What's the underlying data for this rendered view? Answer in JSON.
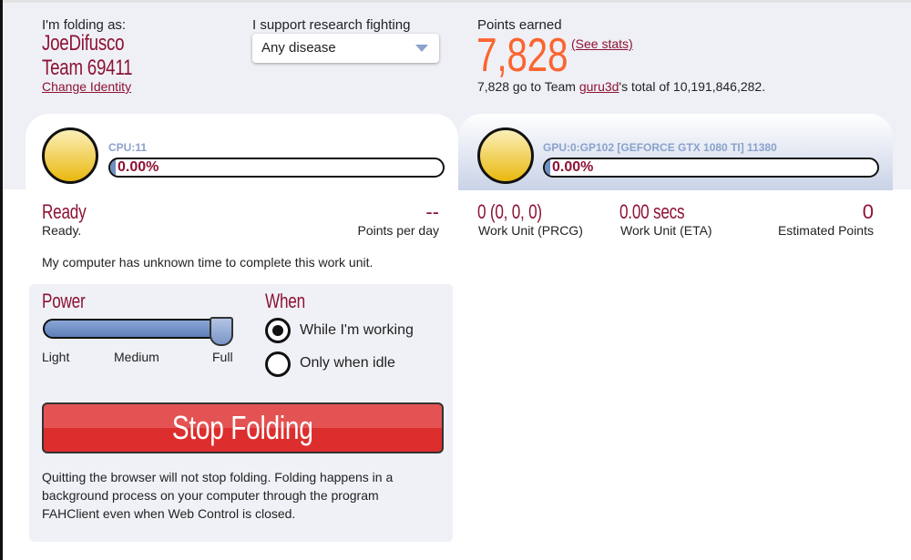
{
  "identity": {
    "label": "I'm folding as:",
    "user": "JoeDifusco",
    "team": "Team 69411",
    "change": "Change Identity"
  },
  "research": {
    "label": "I support research fighting",
    "selected": "Any disease"
  },
  "points": {
    "label": "Points earned",
    "value": "7,828",
    "see_stats": "(See stats)",
    "line_pre": "7,828 go to Team ",
    "team_link": "guru3d",
    "line_post": "'s total of 10,191,846,282."
  },
  "slots": [
    {
      "name": "CPU:11",
      "progress": "0.00%",
      "selected": true
    },
    {
      "name": "GPU:0:GP102 [GEFORCE GTX 1080 TI] 11380",
      "progress": "0.00%",
      "selected": false
    }
  ],
  "cpu": {
    "status": "Ready",
    "status_detail": "Ready.",
    "ppd": "--",
    "ppd_label": "Points per day",
    "eta_text": "My computer has unknown time to complete this work unit."
  },
  "gpu": {
    "prcg": "0 (0, 0, 0)",
    "prcg_label": "Work Unit (PRCG)",
    "eta": "0.00 secs",
    "eta_label": "Work Unit (ETA)",
    "points": "0",
    "points_label": "Estimated Points"
  },
  "power": {
    "title": "Power",
    "levels": [
      "Light",
      "Medium",
      "Full"
    ],
    "selected": "Full",
    "level_percent": 100
  },
  "when": {
    "title": "When",
    "options": [
      "While I'm working",
      "Only when idle"
    ],
    "selected": "While I'm working"
  },
  "stop_button": "Stop Folding",
  "note": "Quitting the browser will not stop folding. Folding happens in a background process on your computer through the program FAHClient even when Web Control is closed.",
  "colors": {
    "accent": "#8d1233",
    "points": "#fb6530",
    "button": "#dd2e2e",
    "slot": "#8aa2cc"
  }
}
